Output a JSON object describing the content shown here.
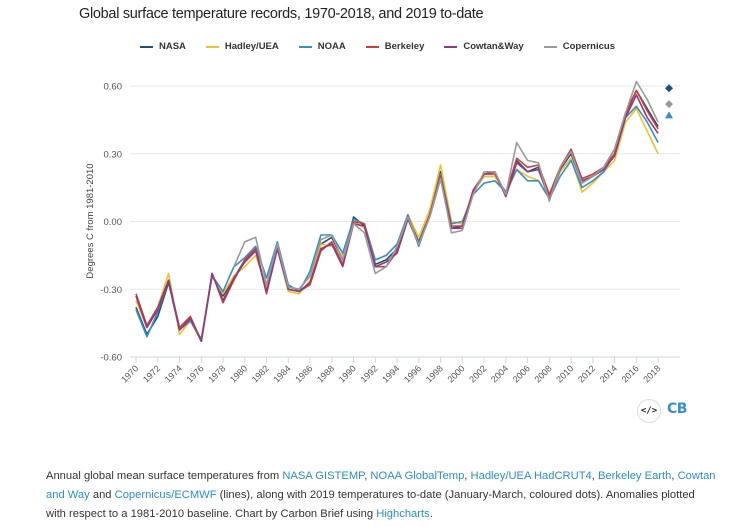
{
  "chart_data": {
    "type": "line",
    "title": "Global surface temperature records, 1970-2018, and 2019 to-date",
    "xlabel": "",
    "ylabel": "Degrees C from 1981-2010",
    "ylim": [
      -0.6,
      0.6
    ],
    "yticks": [
      0.6,
      0.3,
      0.0,
      -0.3,
      -0.6
    ],
    "ytick_labels": [
      "0.60",
      "0.30",
      "0.00",
      "-0.30",
      "-0.60"
    ],
    "xlim": [
      1970,
      2019
    ],
    "xticks": [
      1970,
      1972,
      1974,
      1976,
      1978,
      1980,
      1982,
      1984,
      1986,
      1988,
      1990,
      1992,
      1994,
      1996,
      1998,
      2000,
      2002,
      2004,
      2006,
      2008,
      2010,
      2012,
      2014,
      2016,
      2018
    ],
    "grid": true,
    "legend_position": "top-center",
    "x": [
      1970,
      1971,
      1972,
      1973,
      1974,
      1975,
      1976,
      1977,
      1978,
      1979,
      1980,
      1981,
      1982,
      1983,
      1984,
      1985,
      1986,
      1987,
      1988,
      1989,
      1990,
      1991,
      1992,
      1993,
      1994,
      1995,
      1996,
      1997,
      1998,
      1999,
      2000,
      2001,
      2002,
      2003,
      2004,
      2005,
      2006,
      2007,
      2008,
      2009,
      2010,
      2011,
      2012,
      2013,
      2014,
      2015,
      2016,
      2017,
      2018
    ],
    "series": [
      {
        "name": "NASA",
        "color": "#1f4e79",
        "values": [
          -0.38,
          -0.5,
          -0.42,
          -0.27,
          -0.48,
          -0.43,
          -0.53,
          -0.24,
          -0.33,
          -0.25,
          -0.17,
          -0.12,
          -0.31,
          -0.1,
          -0.29,
          -0.3,
          -0.24,
          -0.1,
          -0.07,
          -0.17,
          0.02,
          -0.02,
          -0.19,
          -0.17,
          -0.12,
          0.02,
          -0.09,
          0.03,
          0.22,
          -0.03,
          -0.02,
          0.13,
          0.2,
          0.2,
          0.13,
          0.27,
          0.22,
          0.24,
          0.11,
          0.23,
          0.3,
          0.17,
          0.2,
          0.24,
          0.32,
          0.48,
          0.58,
          0.5,
          0.42
        ]
      },
      {
        "name": "Hadley/UEA",
        "color": "#f2c12e",
        "values": [
          -0.35,
          -0.47,
          -0.38,
          -0.23,
          -0.5,
          -0.44,
          -0.53,
          -0.24,
          -0.32,
          -0.24,
          -0.2,
          -0.15,
          -0.29,
          -0.12,
          -0.31,
          -0.32,
          -0.26,
          -0.1,
          -0.11,
          -0.15,
          0.0,
          -0.03,
          -0.17,
          -0.15,
          -0.1,
          0.03,
          -0.07,
          0.05,
          0.25,
          0.0,
          -0.01,
          0.13,
          0.2,
          0.2,
          0.12,
          0.23,
          0.2,
          0.18,
          0.11,
          0.22,
          0.28,
          0.13,
          0.17,
          0.22,
          0.27,
          0.44,
          0.5,
          0.4,
          0.3
        ]
      },
      {
        "name": "NOAA",
        "color": "#3a8ec9",
        "values": [
          -0.39,
          -0.51,
          -0.4,
          -0.26,
          -0.48,
          -0.44,
          -0.52,
          -0.24,
          -0.31,
          -0.2,
          -0.16,
          -0.11,
          -0.25,
          -0.09,
          -0.28,
          -0.31,
          -0.22,
          -0.06,
          -0.06,
          -0.14,
          0.01,
          -0.01,
          -0.17,
          -0.15,
          -0.1,
          0.03,
          -0.11,
          0.03,
          0.21,
          -0.01,
          0.0,
          0.12,
          0.17,
          0.18,
          0.13,
          0.23,
          0.18,
          0.18,
          0.1,
          0.2,
          0.27,
          0.15,
          0.18,
          0.22,
          0.3,
          0.46,
          0.51,
          0.44,
          0.35
        ]
      },
      {
        "name": "Berkeley",
        "color": "#c9403a",
        "values": [
          -0.32,
          -0.46,
          -0.38,
          -0.26,
          -0.47,
          -0.42,
          -0.53,
          -0.23,
          -0.36,
          -0.26,
          -0.17,
          -0.12,
          -0.32,
          -0.12,
          -0.3,
          -0.31,
          -0.28,
          -0.13,
          -0.09,
          -0.19,
          0.0,
          -0.01,
          -0.2,
          -0.2,
          -0.13,
          0.02,
          -0.1,
          0.03,
          0.2,
          -0.02,
          -0.02,
          0.14,
          0.21,
          0.21,
          0.12,
          0.28,
          0.24,
          0.25,
          0.12,
          0.24,
          0.32,
          0.19,
          0.21,
          0.24,
          0.3,
          0.47,
          0.58,
          0.49,
          0.41
        ]
      },
      {
        "name": "Cowtan&Way",
        "color": "#8e3d7e",
        "values": [
          -0.33,
          -0.47,
          -0.39,
          -0.26,
          -0.48,
          -0.43,
          -0.53,
          -0.23,
          -0.35,
          -0.25,
          -0.18,
          -0.13,
          -0.31,
          -0.12,
          -0.3,
          -0.31,
          -0.27,
          -0.12,
          -0.1,
          -0.2,
          -0.01,
          -0.02,
          -0.2,
          -0.18,
          -0.14,
          0.01,
          -0.1,
          0.02,
          0.19,
          -0.03,
          -0.03,
          0.13,
          0.21,
          0.22,
          0.11,
          0.26,
          0.22,
          0.23,
          0.1,
          0.23,
          0.31,
          0.18,
          0.2,
          0.23,
          0.29,
          0.46,
          0.56,
          0.46,
          0.39
        ]
      },
      {
        "name": "Copernicus",
        "color": "#9a9a9a",
        "values": [
          null,
          null,
          null,
          null,
          null,
          null,
          null,
          null,
          null,
          -0.2,
          -0.09,
          -0.07,
          -0.28,
          -0.1,
          -0.29,
          -0.3,
          -0.24,
          -0.08,
          -0.06,
          -0.17,
          -0.01,
          -0.05,
          -0.23,
          -0.2,
          -0.11,
          0.02,
          -0.1,
          0.02,
          0.19,
          -0.05,
          -0.04,
          0.12,
          0.22,
          0.22,
          0.12,
          0.35,
          0.27,
          0.26,
          0.09,
          0.24,
          0.31,
          0.17,
          0.2,
          0.24,
          0.32,
          0.48,
          0.62,
          0.54,
          0.44
        ]
      }
    ],
    "points_2019": [
      {
        "name": "NASA",
        "marker": "diamond",
        "color": "#1f4e79",
        "x": 2019,
        "y": 0.59
      },
      {
        "name": "Copernicus",
        "marker": "diamond",
        "color": "#9a9a9a",
        "x": 2019,
        "y": 0.52
      },
      {
        "name": "NOAA",
        "marker": "triangle",
        "color": "#3a8ec9",
        "x": 2019,
        "y": 0.47
      }
    ]
  },
  "branding": {
    "embed_icon_label": "</>",
    "logo_text": "CB"
  },
  "caption": {
    "part1": "Annual global mean surface temperatures from ",
    "link1": "NASA GISTEMP",
    "sep1": ", ",
    "link2": "NOAA GlobalTemp",
    "sep2": ", ",
    "link3": "Hadley/UEA HadCRUT4",
    "sep3": ", ",
    "link4": "Berkeley Earth",
    "sep4": ", ",
    "link5": "Cowtan and Way",
    "part2": " and ",
    "link6": "Copernicus/ECMWF",
    "part3": " (lines), along with 2019 temperatures to-date (January-March, coloured dots). Anomalies plotted with respect to a 1981-2010 baseline. Chart by Carbon Brief using ",
    "link7": "Highcharts",
    "part4": "."
  }
}
